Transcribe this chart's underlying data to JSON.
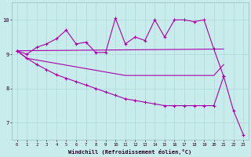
{
  "xlabel": "Windchill (Refroidissement éolien,°C)",
  "background_color": "#c8ecec",
  "grid_color": "#b0d8d8",
  "line_color": "#aa00aa",
  "series1_x": [
    0,
    1,
    2,
    3,
    4,
    5,
    6,
    7,
    8,
    9,
    10,
    11,
    12,
    13,
    14,
    15,
    16,
    17,
    18,
    19,
    20,
    21
  ],
  "series1_y": [
    9.1,
    9.0,
    9.2,
    9.3,
    9.45,
    9.7,
    9.3,
    9.35,
    9.05,
    9.05,
    10.05,
    9.3,
    9.5,
    9.4,
    10.0,
    9.5,
    10.0,
    10.0,
    9.95,
    10.0,
    9.15,
    8.35
  ],
  "series2_x": [
    0,
    21
  ],
  "series2_y": [
    9.1,
    9.15
  ],
  "series3_x": [
    0,
    1,
    2,
    3,
    4,
    5,
    6,
    7,
    8,
    9,
    10,
    11,
    12,
    13,
    14,
    15,
    16,
    17,
    18,
    19,
    20,
    21
  ],
  "series3_y": [
    9.1,
    8.88,
    8.83,
    8.78,
    8.73,
    8.68,
    8.63,
    8.58,
    8.53,
    8.48,
    8.43,
    8.38,
    8.38,
    8.38,
    8.38,
    8.38,
    8.38,
    8.38,
    8.38,
    8.38,
    8.38,
    8.7
  ],
  "series4_x": [
    0,
    1,
    2,
    3,
    4,
    5,
    6,
    7,
    8,
    9,
    10,
    11,
    12,
    13,
    14,
    15,
    16,
    17,
    18,
    19,
    20,
    21,
    22,
    23
  ],
  "series4_y": [
    9.1,
    8.88,
    8.7,
    8.55,
    8.4,
    8.3,
    8.2,
    8.1,
    8.0,
    7.9,
    7.8,
    7.7,
    7.65,
    7.6,
    7.55,
    7.5,
    7.5,
    7.5,
    7.5,
    7.5,
    7.5,
    8.35,
    7.35,
    6.65
  ],
  "ylim": [
    6.5,
    10.5
  ],
  "yticks": [
    7,
    8,
    9,
    10
  ],
  "xticks": [
    0,
    1,
    2,
    3,
    4,
    5,
    6,
    7,
    8,
    9,
    10,
    11,
    12,
    13,
    14,
    15,
    16,
    17,
    18,
    19,
    20,
    21,
    22,
    23
  ]
}
